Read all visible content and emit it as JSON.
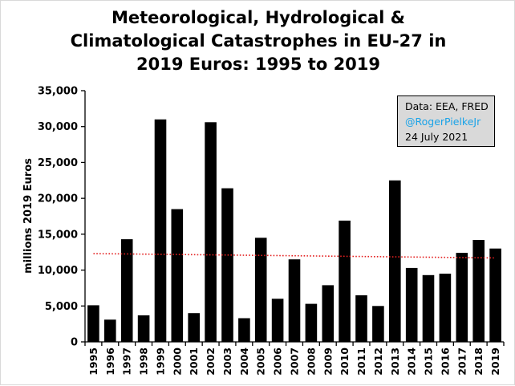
{
  "chart_data": {
    "type": "bar",
    "title_lines": [
      "Meteorological, Hydrological &",
      "Climatological Catastrophes in EU-27 in",
      "2019 Euros: 1995 to 2019"
    ],
    "ylabel": "millions 2019 Euros",
    "xlabel": "",
    "ylim": [
      0,
      35000
    ],
    "yticks": [
      0,
      5000,
      10000,
      15000,
      20000,
      25000,
      30000,
      35000
    ],
    "ytick_labels": [
      "0",
      "5,000",
      "10,000",
      "15,000",
      "20,000",
      "25,000",
      "30,000",
      "35,000"
    ],
    "categories": [
      "1995",
      "1996",
      "1997",
      "1998",
      "1999",
      "2000",
      "2001",
      "2002",
      "2003",
      "2004",
      "2005",
      "2006",
      "2007",
      "2008",
      "2009",
      "2010",
      "2011",
      "2012",
      "2013",
      "2014",
      "2015",
      "2016",
      "2017",
      "2018",
      "2019"
    ],
    "values": [
      5100,
      3100,
      14300,
      3700,
      31000,
      18500,
      4000,
      30600,
      21400,
      3300,
      14500,
      6000,
      11500,
      5300,
      7900,
      16900,
      6500,
      5000,
      22500,
      10300,
      9300,
      9500,
      12400,
      14200,
      13000
    ],
    "trend": {
      "style": "dotted",
      "color": "#e32020",
      "start": 12300,
      "end": 11700
    },
    "bar_color": "#000000",
    "grid": false,
    "annotation": {
      "source": "Data: EEA, FRED",
      "handle": "@RogerPielkeJr",
      "date": "24 July 2021"
    }
  }
}
